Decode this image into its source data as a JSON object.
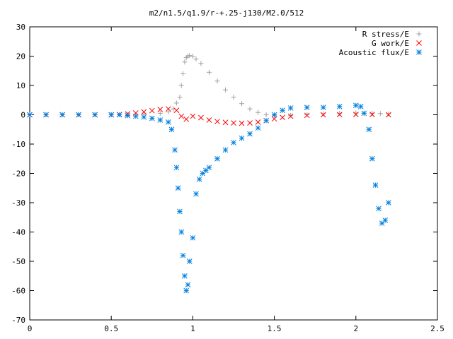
{
  "chart_data": {
    "type": "scatter",
    "title": "m2/n1.5/q1.9/r-+.25-j130/M2.0/512",
    "xlabel": "",
    "ylabel": "",
    "xlim": [
      0,
      2.5
    ],
    "ylim": [
      -70,
      30
    ],
    "x_ticks": [
      "0",
      "0.5",
      "1",
      "1.5",
      "2",
      "2.5"
    ],
    "y_ticks": [
      "30",
      "20",
      "10",
      "0",
      "-10",
      "-20",
      "-30",
      "-40",
      "-50",
      "-60",
      "-70"
    ],
    "grid": false,
    "legend_position": "top-right",
    "series": [
      {
        "name": "R stress/E",
        "marker": "+",
        "color": "#a0a0a0",
        "x": [
          0.0,
          0.1,
          0.2,
          0.3,
          0.4,
          0.5,
          0.6,
          0.7,
          0.8,
          0.85,
          0.88,
          0.9,
          0.92,
          0.93,
          0.94,
          0.95,
          0.96,
          0.97,
          0.98,
          1.0,
          1.02,
          1.05,
          1.1,
          1.15,
          1.2,
          1.25,
          1.3,
          1.35,
          1.4,
          1.45,
          1.5,
          1.6,
          1.7,
          1.8,
          1.9,
          2.0,
          2.05,
          2.1,
          2.15,
          2.2
        ],
        "y": [
          0,
          0,
          0,
          0,
          0,
          0,
          0.1,
          0.2,
          0.5,
          1.0,
          2.0,
          4.0,
          6.0,
          10.0,
          14.0,
          18.0,
          19.5,
          20.0,
          20.2,
          20.0,
          19.0,
          17.5,
          14.5,
          11.5,
          8.5,
          6.0,
          3.8,
          2.0,
          0.8,
          0.0,
          -0.3,
          -0.2,
          0.0,
          0.3,
          0.5,
          0.6,
          0.6,
          0.5,
          0.4,
          0.3
        ]
      },
      {
        "name": "G work/E",
        "marker": "x",
        "color": "#ff0000",
        "x": [
          0.0,
          0.1,
          0.2,
          0.3,
          0.4,
          0.5,
          0.55,
          0.6,
          0.65,
          0.7,
          0.75,
          0.8,
          0.85,
          0.9,
          0.93,
          0.96,
          1.0,
          1.05,
          1.1,
          1.15,
          1.2,
          1.25,
          1.3,
          1.35,
          1.4,
          1.45,
          1.5,
          1.55,
          1.6,
          1.7,
          1.8,
          1.9,
          2.0,
          2.1,
          2.2
        ],
        "y": [
          0,
          0,
          0,
          0,
          0,
          0,
          0.1,
          0.3,
          0.6,
          1.0,
          1.4,
          1.8,
          2.0,
          1.5,
          -0.5,
          -1.5,
          -0.5,
          -1.0,
          -1.8,
          -2.3,
          -2.6,
          -2.8,
          -2.9,
          -2.8,
          -2.5,
          -2.0,
          -1.4,
          -0.9,
          -0.5,
          -0.2,
          0.0,
          0.1,
          0.1,
          0.1,
          0.0
        ]
      },
      {
        "name": "Acoustic flux/E",
        "marker": "*",
        "color": "#0080e0",
        "x": [
          0.0,
          0.1,
          0.2,
          0.3,
          0.4,
          0.5,
          0.55,
          0.6,
          0.65,
          0.7,
          0.75,
          0.8,
          0.85,
          0.87,
          0.89,
          0.9,
          0.91,
          0.92,
          0.93,
          0.94,
          0.95,
          0.96,
          0.97,
          0.98,
          1.0,
          1.02,
          1.04,
          1.06,
          1.08,
          1.1,
          1.15,
          1.2,
          1.25,
          1.3,
          1.35,
          1.4,
          1.45,
          1.5,
          1.55,
          1.6,
          1.7,
          1.8,
          1.9,
          2.0,
          2.03,
          2.05,
          2.08,
          2.1,
          2.12,
          2.14,
          2.16,
          2.18,
          2.2
        ],
        "y": [
          0,
          0,
          0,
          0,
          0,
          0,
          0,
          -0.3,
          -0.5,
          -0.8,
          -1.2,
          -1.8,
          -2.5,
          -5,
          -12,
          -18,
          -25,
          -33,
          -40,
          -48,
          -55,
          -60,
          -58,
          -50,
          -42,
          -27,
          -22,
          -20,
          -19,
          -18,
          -15,
          -12,
          -9.5,
          -8,
          -6.5,
          -4.5,
          -2,
          0.0,
          1.5,
          2.3,
          2.5,
          2.5,
          2.8,
          3.2,
          2.8,
          0.5,
          -5,
          -15,
          -24,
          -32,
          -37,
          -36,
          -30
        ]
      }
    ]
  }
}
